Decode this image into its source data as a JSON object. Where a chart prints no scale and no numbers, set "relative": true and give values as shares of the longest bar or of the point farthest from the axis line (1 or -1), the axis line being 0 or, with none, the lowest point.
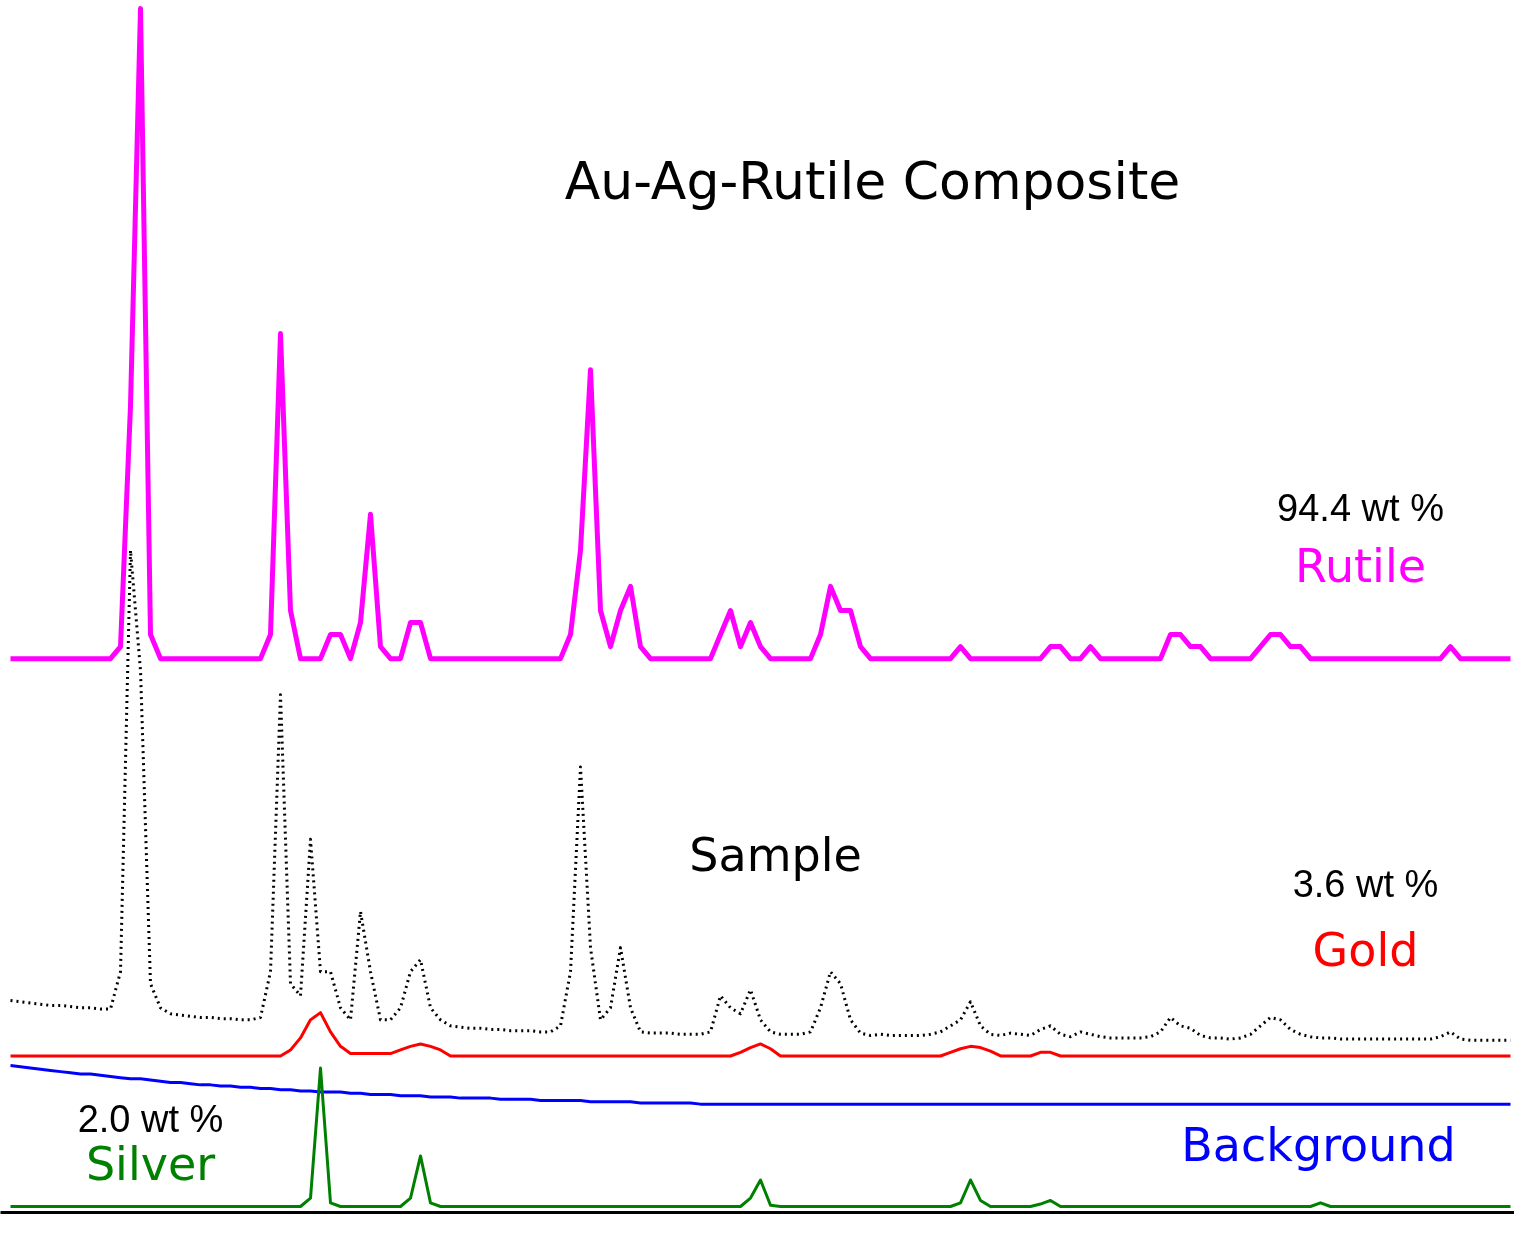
{
  "chart_data": {
    "type": "line",
    "title": "Au-Ag-Rutile Composite",
    "relative": true,
    "tick_labels": false,
    "grid": false,
    "categories": [
      null,
      null,
      null,
      null,
      null,
      null,
      null,
      null,
      null,
      null,
      null,
      null,
      null,
      null,
      null,
      null,
      null,
      null,
      null,
      null,
      null,
      null,
      null,
      null,
      null,
      null,
      null,
      null,
      null,
      null,
      null,
      null,
      null,
      null,
      null,
      null,
      null,
      null,
      null,
      null,
      null,
      null,
      null,
      null,
      null,
      null,
      null,
      null,
      null,
      null,
      null,
      null,
      null,
      null,
      null,
      null,
      null,
      null,
      null,
      null,
      null,
      null,
      null,
      null,
      null,
      null,
      null,
      null,
      null,
      null,
      null,
      null,
      null,
      null,
      null,
      null,
      null,
      null,
      null,
      null,
      null,
      null,
      null,
      null,
      null,
      null,
      null,
      null,
      null,
      null,
      null,
      null,
      null,
      null,
      null,
      null,
      null,
      null,
      null,
      null,
      null,
      null,
      null,
      null,
      null,
      null,
      null,
      null,
      null,
      null,
      null,
      null,
      null,
      null,
      null,
      null,
      null,
      null,
      null,
      null,
      null,
      null,
      null,
      null,
      null,
      null,
      null,
      null,
      null,
      null,
      null,
      null,
      null,
      null,
      null,
      null,
      null,
      null,
      null,
      null,
      null,
      null,
      null,
      null,
      null,
      null,
      null,
      null,
      null,
      null,
      null
    ],
    "series": [
      {
        "name": "Rutile",
        "color": "#ff00ff",
        "values": [
          0.46,
          0.46,
          0.46,
          0.46,
          0.46,
          0.46,
          0.46,
          0.46,
          0.46,
          0.46,
          0.46,
          0.47,
          0.67,
          1.0,
          0.48,
          0.46,
          0.46,
          0.46,
          0.46,
          0.46,
          0.46,
          0.46,
          0.46,
          0.46,
          0.46,
          0.46,
          0.48,
          0.73,
          0.5,
          0.46,
          0.46,
          0.46,
          0.48,
          0.48,
          0.46,
          0.49,
          0.58,
          0.47,
          0.46,
          0.46,
          0.49,
          0.49,
          0.46,
          0.46,
          0.46,
          0.46,
          0.46,
          0.46,
          0.46,
          0.46,
          0.46,
          0.46,
          0.46,
          0.46,
          0.46,
          0.46,
          0.48,
          0.55,
          0.7,
          0.5,
          0.47,
          0.5,
          0.52,
          0.47,
          0.46,
          0.46,
          0.46,
          0.46,
          0.46,
          0.46,
          0.46,
          0.48,
          0.5,
          0.47,
          0.49,
          0.47,
          0.46,
          0.46,
          0.46,
          0.46,
          0.46,
          0.48,
          0.52,
          0.5,
          0.5,
          0.47,
          0.46,
          0.46,
          0.46,
          0.46,
          0.46,
          0.46,
          0.46,
          0.46,
          0.46,
          0.47,
          0.46,
          0.46,
          0.46,
          0.46,
          0.46,
          0.46,
          0.46,
          0.46,
          0.47,
          0.47,
          0.46,
          0.46,
          0.47,
          0.46,
          0.46,
          0.46,
          0.46,
          0.46,
          0.46,
          0.46,
          0.48,
          0.48,
          0.47,
          0.47,
          0.46,
          0.46,
          0.46,
          0.46,
          0.46,
          0.47,
          0.48,
          0.48,
          0.47,
          0.47,
          0.46,
          0.46,
          0.46,
          0.46,
          0.46,
          0.46,
          0.46,
          0.46,
          0.46,
          0.46,
          0.46,
          0.46,
          0.46,
          0.46,
          0.47,
          0.46,
          0.46,
          0.46,
          0.46,
          0.46,
          0.46
        ]
      },
      {
        "name": "Sample",
        "type": "line",
        "line_style": "dotted",
        "color": "#000000",
        "values": [
          0.176,
          0.175,
          0.174,
          0.173,
          0.172,
          0.172,
          0.171,
          0.17,
          0.17,
          0.169,
          0.169,
          0.2,
          0.55,
          0.45,
          0.19,
          0.17,
          0.165,
          0.164,
          0.163,
          0.162,
          0.162,
          0.161,
          0.161,
          0.16,
          0.16,
          0.162,
          0.2,
          0.43,
          0.19,
          0.18,
          0.31,
          0.2,
          0.2,
          0.17,
          0.16,
          0.25,
          0.2,
          0.16,
          0.16,
          0.17,
          0.2,
          0.21,
          0.17,
          0.16,
          0.155,
          0.154,
          0.153,
          0.153,
          0.152,
          0.152,
          0.151,
          0.151,
          0.151,
          0.15,
          0.15,
          0.155,
          0.2,
          0.37,
          0.22,
          0.16,
          0.17,
          0.22,
          0.17,
          0.15,
          0.149,
          0.149,
          0.149,
          0.148,
          0.148,
          0.148,
          0.15,
          0.18,
          0.17,
          0.165,
          0.185,
          0.16,
          0.15,
          0.148,
          0.148,
          0.148,
          0.15,
          0.17,
          0.2,
          0.19,
          0.16,
          0.149,
          0.147,
          0.148,
          0.147,
          0.147,
          0.147,
          0.147,
          0.148,
          0.15,
          0.155,
          0.16,
          0.175,
          0.155,
          0.148,
          0.147,
          0.149,
          0.148,
          0.147,
          0.152,
          0.155,
          0.148,
          0.146,
          0.15,
          0.148,
          0.146,
          0.145,
          0.145,
          0.145,
          0.145,
          0.146,
          0.15,
          0.162,
          0.155,
          0.153,
          0.147,
          0.145,
          0.145,
          0.144,
          0.145,
          0.148,
          0.155,
          0.162,
          0.16,
          0.152,
          0.148,
          0.146,
          0.145,
          0.145,
          0.144,
          0.144,
          0.144,
          0.144,
          0.144,
          0.144,
          0.144,
          0.144,
          0.144,
          0.144,
          0.146,
          0.15,
          0.144,
          0.143,
          0.143,
          0.143,
          0.143,
          0.143
        ]
      },
      {
        "name": "Gold",
        "color": "#ff0000",
        "values": [
          0.13,
          0.13,
          0.13,
          0.13,
          0.13,
          0.13,
          0.13,
          0.13,
          0.13,
          0.13,
          0.13,
          0.13,
          0.13,
          0.13,
          0.13,
          0.13,
          0.13,
          0.13,
          0.13,
          0.13,
          0.13,
          0.13,
          0.13,
          0.13,
          0.13,
          0.13,
          0.13,
          0.13,
          0.135,
          0.145,
          0.16,
          0.166,
          0.15,
          0.138,
          0.132,
          0.132,
          0.132,
          0.132,
          0.132,
          0.135,
          0.138,
          0.14,
          0.138,
          0.135,
          0.13,
          0.13,
          0.13,
          0.13,
          0.13,
          0.13,
          0.13,
          0.13,
          0.13,
          0.13,
          0.13,
          0.13,
          0.13,
          0.13,
          0.13,
          0.13,
          0.13,
          0.13,
          0.13,
          0.13,
          0.13,
          0.13,
          0.13,
          0.13,
          0.13,
          0.13,
          0.13,
          0.13,
          0.13,
          0.133,
          0.137,
          0.14,
          0.136,
          0.13,
          0.13,
          0.13,
          0.13,
          0.13,
          0.13,
          0.13,
          0.13,
          0.13,
          0.13,
          0.13,
          0.13,
          0.13,
          0.13,
          0.13,
          0.13,
          0.13,
          0.133,
          0.136,
          0.138,
          0.137,
          0.134,
          0.13,
          0.13,
          0.13,
          0.13,
          0.133,
          0.133,
          0.13,
          0.13,
          0.13,
          0.13,
          0.13,
          0.13,
          0.13,
          0.13,
          0.13,
          0.13,
          0.13,
          0.13,
          0.13,
          0.13,
          0.13,
          0.13,
          0.13,
          0.13,
          0.13,
          0.13,
          0.13,
          0.13,
          0.13,
          0.13,
          0.13,
          0.13,
          0.13,
          0.13,
          0.13,
          0.13,
          0.13,
          0.13,
          0.13,
          0.13,
          0.13,
          0.13,
          0.13,
          0.13,
          0.13,
          0.13,
          0.13,
          0.13,
          0.13,
          0.13,
          0.13,
          0.13
        ]
      },
      {
        "name": "Background",
        "color": "#0000ff",
        "values": [
          0.122,
          0.121,
          0.12,
          0.119,
          0.118,
          0.117,
          0.116,
          0.115,
          0.115,
          0.114,
          0.113,
          0.112,
          0.111,
          0.111,
          0.11,
          0.109,
          0.108,
          0.108,
          0.107,
          0.106,
          0.106,
          0.105,
          0.105,
          0.104,
          0.104,
          0.103,
          0.103,
          0.102,
          0.102,
          0.101,
          0.101,
          0.1,
          0.1,
          0.1,
          0.099,
          0.099,
          0.098,
          0.098,
          0.098,
          0.097,
          0.097,
          0.097,
          0.096,
          0.096,
          0.096,
          0.095,
          0.095,
          0.095,
          0.095,
          0.094,
          0.094,
          0.094,
          0.094,
          0.093,
          0.093,
          0.093,
          0.093,
          0.093,
          0.092,
          0.092,
          0.092,
          0.092,
          0.092,
          0.091,
          0.091,
          0.091,
          0.091,
          0.091,
          0.091,
          0.09,
          0.09,
          0.09,
          0.09,
          0.09,
          0.09,
          0.09,
          0.09,
          0.09,
          0.09,
          0.09,
          0.09,
          0.09,
          0.09,
          0.09,
          0.09,
          0.09,
          0.09,
          0.09,
          0.09,
          0.09,
          0.09,
          0.09,
          0.09,
          0.09,
          0.09,
          0.09,
          0.09,
          0.09,
          0.09,
          0.09,
          0.09,
          0.09,
          0.09,
          0.09,
          0.09,
          0.09,
          0.09,
          0.09,
          0.09,
          0.09,
          0.09,
          0.09,
          0.09,
          0.09,
          0.09,
          0.09,
          0.09,
          0.09,
          0.09,
          0.09,
          0.09,
          0.09,
          0.09,
          0.09,
          0.09,
          0.09,
          0.09,
          0.09,
          0.09,
          0.09,
          0.09,
          0.09,
          0.09,
          0.09,
          0.09,
          0.09,
          0.09,
          0.09,
          0.09,
          0.09,
          0.09,
          0.09,
          0.09,
          0.09,
          0.09,
          0.09,
          0.09,
          0.09,
          0.09,
          0.09,
          0.09
        ]
      },
      {
        "name": "Silver",
        "color": "#008000",
        "values": [
          0.005,
          0.005,
          0.005,
          0.005,
          0.005,
          0.005,
          0.005,
          0.005,
          0.005,
          0.005,
          0.005,
          0.005,
          0.005,
          0.005,
          0.005,
          0.005,
          0.005,
          0.005,
          0.005,
          0.005,
          0.005,
          0.005,
          0.005,
          0.005,
          0.005,
          0.005,
          0.005,
          0.005,
          0.005,
          0.005,
          0.012,
          0.12,
          0.008,
          0.005,
          0.005,
          0.005,
          0.005,
          0.005,
          0.005,
          0.005,
          0.012,
          0.047,
          0.008,
          0.005,
          0.005,
          0.005,
          0.005,
          0.005,
          0.005,
          0.005,
          0.005,
          0.005,
          0.005,
          0.005,
          0.005,
          0.005,
          0.005,
          0.005,
          0.005,
          0.005,
          0.005,
          0.005,
          0.005,
          0.005,
          0.005,
          0.005,
          0.005,
          0.005,
          0.005,
          0.005,
          0.005,
          0.005,
          0.005,
          0.005,
          0.012,
          0.027,
          0.006,
          0.005,
          0.005,
          0.005,
          0.005,
          0.005,
          0.005,
          0.005,
          0.005,
          0.005,
          0.005,
          0.005,
          0.005,
          0.005,
          0.005,
          0.005,
          0.005,
          0.005,
          0.005,
          0.008,
          0.027,
          0.01,
          0.005,
          0.005,
          0.005,
          0.005,
          0.005,
          0.007,
          0.01,
          0.005,
          0.005,
          0.005,
          0.005,
          0.005,
          0.005,
          0.005,
          0.005,
          0.005,
          0.005,
          0.005,
          0.005,
          0.005,
          0.005,
          0.005,
          0.005,
          0.005,
          0.005,
          0.005,
          0.005,
          0.005,
          0.005,
          0.005,
          0.005,
          0.005,
          0.005,
          0.008,
          0.005,
          0.005,
          0.005,
          0.005,
          0.005,
          0.005,
          0.005,
          0.005,
          0.005,
          0.005,
          0.005,
          0.005,
          0.005,
          0.005,
          0.005,
          0.005,
          0.005,
          0.005,
          0.005
        ]
      }
    ],
    "annotations": [
      "94.4 wt %",
      "3.6 wt %",
      "2.0 wt %"
    ]
  }
}
